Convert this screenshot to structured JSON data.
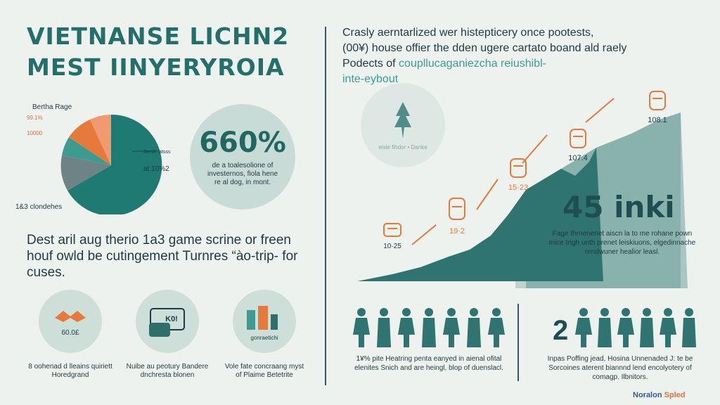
{
  "title": {
    "line1": "VIETNANSE LICHN2",
    "line2": "MEST IINYERYROIA"
  },
  "pie": {
    "label_top": "Bertha Rage",
    "label_orange1": "99.1%",
    "label_orange2": "10000",
    "label_right1": "Bersh tatsss",
    "label_right2": "at 10%2",
    "label_bottom": "1&3 clondehes",
    "colors": [
      "#1f7a74",
      "#6d8487",
      "#3e9b92",
      "#e57a3c",
      "#f19a6f"
    ]
  },
  "stat_circle": {
    "value": "660%",
    "desc": "de a toalesolione of investernos, fiola hene re al dog, in mont."
  },
  "heading2": "Dest aril aug therio 1a3 game scrine or freen houf owld be cutingement Turnres “ào-trip- for cuses.",
  "icon_cards": [
    {
      "icon_name": "handshake-icon",
      "icon_text": "60.0£",
      "caption": "8 oohenad d lleains quiriett Horedgrand"
    },
    {
      "icon_name": "wallet-icon",
      "icon_text": "K0!",
      "caption": "Nuibe au peotury Bandere dnchresta blonen"
    },
    {
      "icon_name": "finance-tools-icon",
      "icon_text": "gonraetichi",
      "caption": "Vole fate concraang myst of Plaime Betetrite"
    }
  ],
  "intro": {
    "line1": "Crasly aerntarlized wer histepticery once pootests,",
    "line2": "(00¥) house offier the dden ugere cartato boand ald raely",
    "line3_prefix": "Podects of ",
    "line3_accent": "coupllucaganiezcha reiushibl-",
    "line4": "inte-eybout"
  },
  "emblem": {
    "label": "eisie fihdor • Danke"
  },
  "chart_points": [
    {
      "label": "10·25"
    },
    {
      "label": "19·2"
    },
    {
      "label": "15·23"
    },
    {
      "label": "107.4"
    },
    {
      "label": "108.1"
    }
  ],
  "big_stat": {
    "value": "45 inki",
    "desc": "Fage thrnenenet aiscn la to me rohane pown mice trigh unth prenet leiskiuons, elgedinnache rendwuner healior leasl."
  },
  "people_left_caption": "1¥% pite Heatring penta eanyed in aienal ofital elenites Snich and are heingl, blop of duenslacl.",
  "people_right": {
    "number": "2",
    "caption": "Inpas Poffing jead, Hosina Unnenaded J: te be Sorcoines aterent biannnd lend encolyotery of comagp. Ilbnitors."
  },
  "logo": {
    "text1": "Noralon ",
    "text2": "Spled"
  }
}
